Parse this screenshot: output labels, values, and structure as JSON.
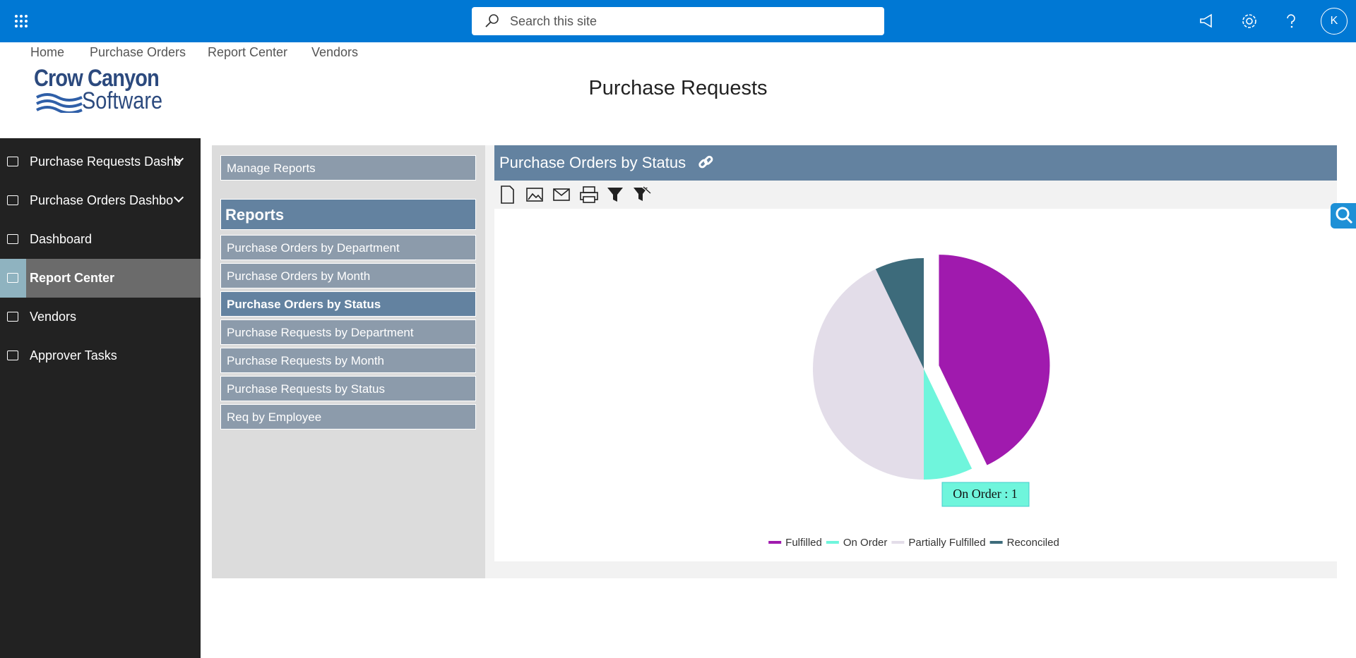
{
  "topbar": {
    "search_placeholder": "Search this site",
    "avatar": "K"
  },
  "nav": [
    "Home",
    "Purchase Orders",
    "Report Center",
    "Vendors"
  ],
  "logo": {
    "line1": "Crow Canyon",
    "line2": "Software"
  },
  "page_title": "Purchase Requests",
  "sidebar": [
    "Purchase Requests Dashb",
    "Purchase Orders Dashbo",
    "Dashboard",
    "Report Center",
    "Vendors",
    "Approver Tasks"
  ],
  "reports_panel": {
    "manage": "Manage Reports",
    "header": "Reports",
    "items": [
      "Purchase Orders by Department",
      "Purchase Orders by Month",
      "Purchase Orders by Status",
      "Purchase Requests by Department",
      "Purchase Requests by Month",
      "Purchase Requests by Status",
      "Req by Employee"
    ]
  },
  "chart_data": {
    "type": "pie",
    "title": "Purchase Orders by Status",
    "categories": [
      "Fulfilled",
      "On Order",
      "Partially Fulfilled",
      "Reconciled"
    ],
    "values": [
      6,
      1,
      6,
      1
    ],
    "colors": [
      "#a01aae",
      "#6ff5dc",
      "#e3dde9",
      "#3d6b7b"
    ],
    "tooltip": "On Order : 1"
  }
}
